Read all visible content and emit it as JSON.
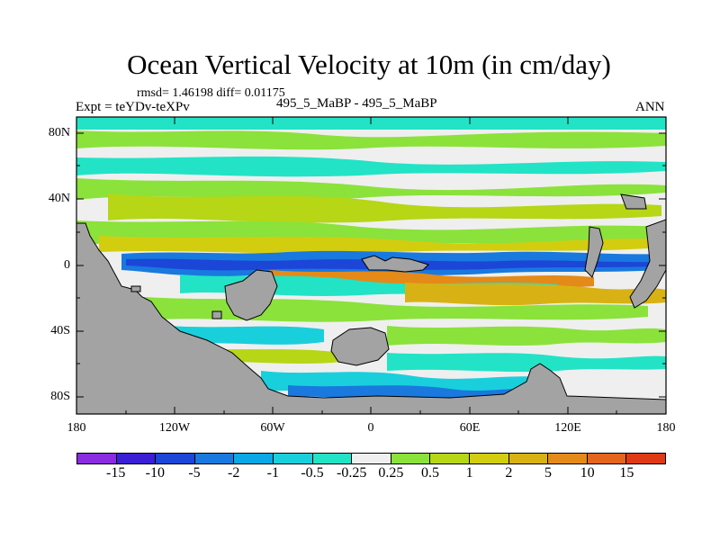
{
  "title": "Ocean Vertical Velocity at 10m (in cm/day)",
  "stats": {
    "rmsd_diff": "rmsd= 1.46198 diff= 0.01175"
  },
  "expt_label": "Expt = teYDv-teXPv",
  "case_label": "495_5_MaBP - 495_5_MaBP",
  "season_label": "ANN",
  "axes": {
    "y_ticks": [
      "80N",
      "40N",
      "0",
      "40S",
      "80S"
    ],
    "x_ticks": [
      "180",
      "120W",
      "60W",
      "0",
      "60E",
      "120E",
      "180"
    ]
  },
  "colorbar": {
    "colors": [
      "#8b2be2",
      "#3a1fd6",
      "#1b46d8",
      "#1979de",
      "#0aa8e4",
      "#19cfdc",
      "#22e3c6",
      "#efefef",
      "#8be23b",
      "#b6d616",
      "#d3cd10",
      "#d8b214",
      "#e48a18",
      "#e4661e",
      "#e03a14"
    ],
    "labels": [
      "-15",
      "-10",
      "-5",
      "-2",
      "-1",
      "-0.5",
      "-0.25",
      "0.25",
      "0.5",
      "1",
      "2",
      "5",
      "10",
      "15"
    ]
  },
  "land_color": "#a3a3a3",
  "chart_data": {
    "type": "heatmap",
    "title": "Ocean Vertical Velocity at 10m (in cm/day)",
    "variable": "Ocean Vertical Velocity at 10m",
    "units": "cm/day",
    "x_range": [
      -180,
      180
    ],
    "y_range": [
      -90,
      90
    ],
    "levels": [
      -15,
      -10,
      -5,
      -2,
      -1,
      -0.5,
      -0.25,
      0.25,
      0.5,
      1,
      2,
      5,
      10,
      15
    ],
    "stats": {
      "rmsd": 1.46198,
      "diff": 0.01175
    },
    "experiment": "teYDv-teXPv",
    "case": "495_5_MaBP - 495_5_MaBP",
    "season": "ANN"
  }
}
